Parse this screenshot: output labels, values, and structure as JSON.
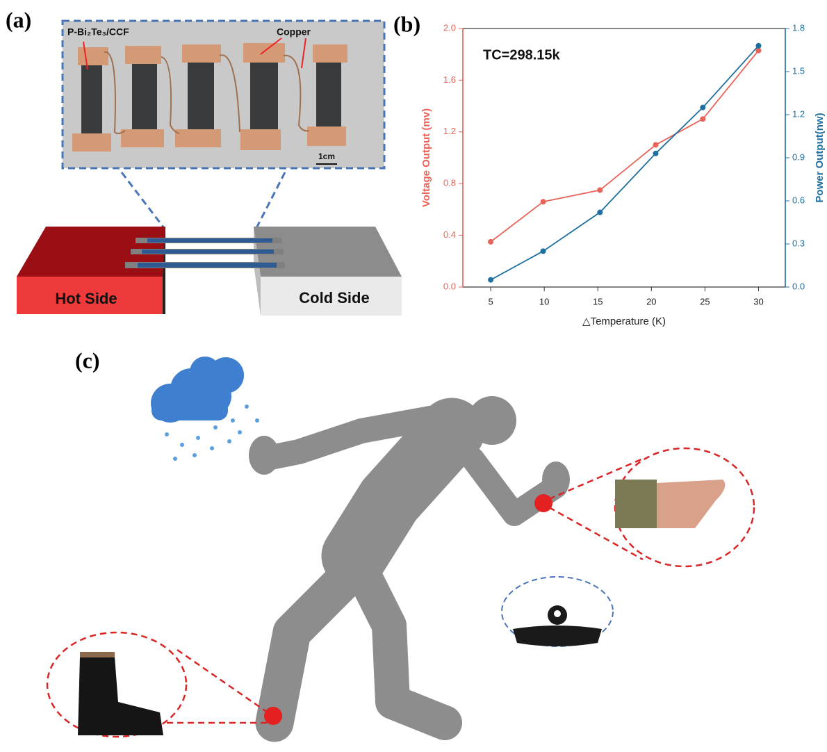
{
  "panel_labels": [
    "(a)",
    "(b)",
    "(c)"
  ],
  "panel_a": {
    "material_label": "P-Bi₂Te₃/CCF",
    "copper_label": "Copper",
    "scale_label": "1cm",
    "hot_side": "Hot Side",
    "cold_side": "Cold Side"
  },
  "chart_data": {
    "type": "line",
    "annotation": "TC=298.15k",
    "x_label": "△Temperature (K)",
    "y_label": "Voltage Output (mv)",
    "y2_label": "Power Output(nw)",
    "x": [
      5,
      9.9,
      15.2,
      20.4,
      24.8,
      30
    ],
    "xlim": [
      2.4,
      32.5
    ],
    "xticks": [
      5,
      10,
      15,
      20,
      25,
      30
    ],
    "ylim": [
      0,
      2.0
    ],
    "yticks": [
      {
        "value": 0,
        "label": "0.0"
      },
      {
        "value": 0.4,
        "label": "0.4"
      },
      {
        "value": 0.8,
        "label": "0.8"
      },
      {
        "value": 1.2,
        "label": "1.2"
      },
      {
        "value": 1.6,
        "label": "1.6"
      },
      {
        "value": 2.0,
        "label": "2.0"
      }
    ],
    "y2lim": [
      0,
      1.8
    ],
    "y2ticks": [
      {
        "value": 0,
        "label": "0.0"
      },
      0.3,
      0.6,
      0.9,
      1.2,
      1.5,
      1.8
    ],
    "series": [
      {
        "color": "#e8645a",
        "values": [
          0.35,
          0.66,
          0.75,
          1.1,
          1.3,
          1.83
        ]
      },
      {
        "color": "#1f6f9f",
        "axis": "y2",
        "values": [
          0.05,
          0.25,
          0.52,
          0.93,
          1.25,
          1.68
        ]
      }
    ]
  }
}
